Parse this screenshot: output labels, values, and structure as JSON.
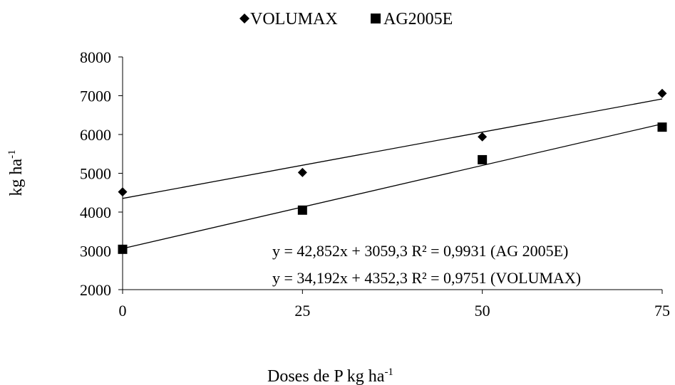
{
  "chart_data": {
    "type": "scatter",
    "xlabel": "Doses de P kg ha-1",
    "xlabel_base": "Doses de P kg ha",
    "xlabel_sup": "-1",
    "ylabel": "kg ha-1",
    "ylabel_base": "kg ha",
    "ylabel_sup": "-1",
    "x_ticks": [
      "0",
      "25",
      "50",
      "75"
    ],
    "x_tick_values": [
      0,
      25,
      50,
      75
    ],
    "y_ticks": [
      "2000",
      "3000",
      "4000",
      "5000",
      "6000",
      "7000",
      "8000"
    ],
    "y_tick_values": [
      2000,
      3000,
      4000,
      5000,
      6000,
      7000,
      8000
    ],
    "xlim": [
      0,
      75
    ],
    "ylim": [
      2000,
      8000
    ],
    "grid": false,
    "legend_position": "top-center",
    "series": [
      {
        "name": "VOLUMAX",
        "marker": "diamond",
        "color": "#000000",
        "x": [
          0,
          25,
          50,
          75
        ],
        "y": [
          4520,
          5020,
          5940,
          7060
        ],
        "trendline": {
          "slope": 34.192,
          "intercept": 4352.3
        },
        "equation": "y = 34,192x + 4352,3  R² = 0,9751 (VOLUMAX)"
      },
      {
        "name": "AG2005E",
        "marker": "square",
        "color": "#000000",
        "x": [
          0,
          25,
          50,
          75
        ],
        "y": [
          3040,
          4050,
          5350,
          6190
        ],
        "trendline": {
          "slope": 42.852,
          "intercept": 3059.3
        },
        "equation": "y = 42,852x + 3059,3  R² = 0,9931 (AG 2005E)"
      }
    ]
  }
}
